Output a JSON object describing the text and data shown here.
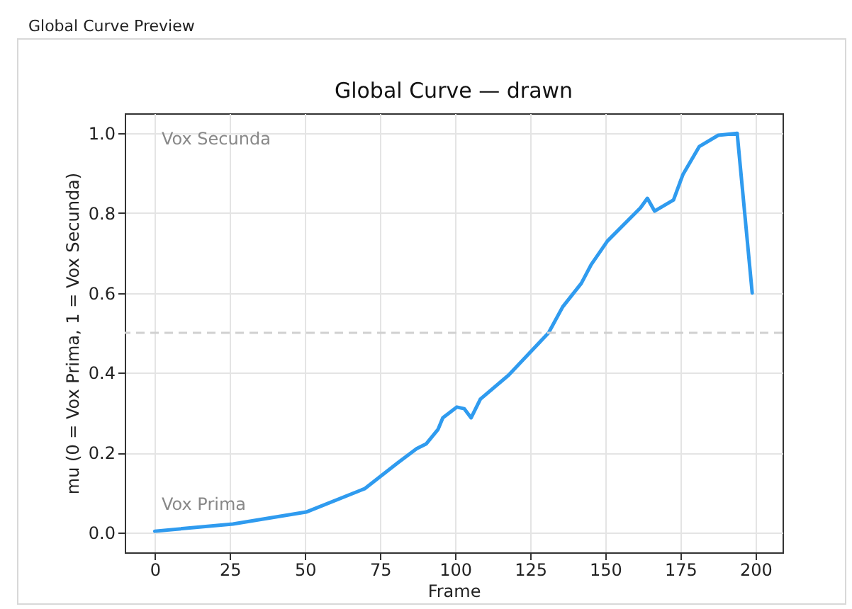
{
  "chart_data": {
    "type": "line",
    "title": "Global Curve — drawn",
    "xlabel": "Frame",
    "ylabel": "mu  (0 = Vox Prima, 1 = Vox Secunda)",
    "x": [
      0,
      26,
      50.4,
      70,
      81,
      87.2,
      90.4,
      94.3,
      95.9,
      100.6,
      103,
      105.3,
      108.4,
      117.8,
      131.1,
      135.8,
      142,
      145.3,
      150.7,
      161.7,
      164,
      166.4,
      172.7,
      175.8,
      181.3,
      187.6,
      193.9,
      198.9
    ],
    "series": [
      {
        "color": "#2f9bef",
        "values": [
          0.003,
          0.021,
          0.051,
          0.11,
          0.175,
          0.21,
          0.222,
          0.258,
          0.287,
          0.314,
          0.31,
          0.287,
          0.334,
          0.394,
          0.5,
          0.565,
          0.624,
          0.671,
          0.73,
          0.813,
          0.837,
          0.805,
          0.833,
          0.896,
          0.967,
          0.995,
          1.0,
          0.6
        ]
      }
    ],
    "xlim": [
      -10,
      209
    ],
    "ylim": [
      -0.05,
      1.05
    ],
    "xticks": [
      0,
      25,
      50,
      75,
      100,
      125,
      150,
      175,
      200
    ],
    "yticks": [
      {
        "value": 0,
        "label": "0.0"
      },
      {
        "value": 0.2,
        "label": "0.2"
      },
      {
        "value": 0.4,
        "label": "0.4"
      },
      {
        "value": 0.6,
        "label": "0.6"
      },
      {
        "value": 0.8,
        "label": "0.8"
      },
      {
        "value": 1,
        "label": "1.0"
      }
    ],
    "grid": true,
    "marker": "none",
    "line_style": "solid",
    "ref_lines": [
      {
        "axis": "y",
        "value": 0.5,
        "color": "#d0d0d0",
        "line_style": "dashed"
      }
    ],
    "annotations": [
      "Global Curve Preview",
      "Vox Secunda",
      "Vox Prima"
    ]
  }
}
